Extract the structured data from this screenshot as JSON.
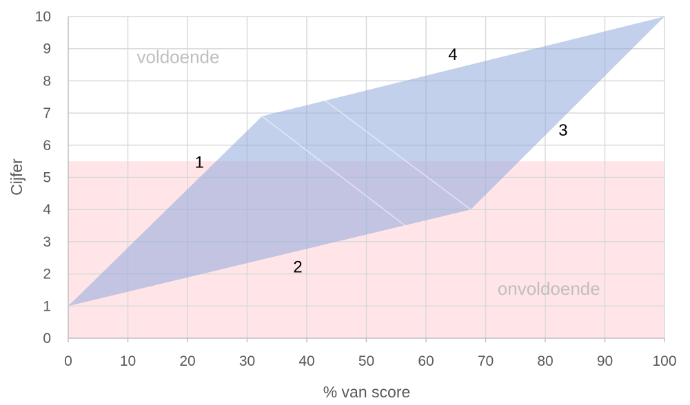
{
  "chart_data": {
    "type": "area",
    "xlabel": "% van score",
    "ylabel": "Cijfer",
    "xlim": [
      0,
      100
    ],
    "ylim": [
      0,
      10
    ],
    "x_ticks": [
      0,
      10,
      20,
      30,
      40,
      50,
      60,
      70,
      80,
      90,
      100
    ],
    "y_ticks": [
      0,
      1,
      2,
      3,
      4,
      5,
      6,
      7,
      8,
      9,
      10
    ],
    "grid": true,
    "band": {
      "name": "onvoldoende",
      "y_from": 0,
      "y_to": 5.5,
      "color": "#ffe5e8"
    },
    "region": {
      "color": "#8faadc",
      "opacity": 0.55,
      "points": [
        {
          "x": 0,
          "y": 1
        },
        {
          "x": 32.5,
          "y": 6.9
        },
        {
          "x": 100,
          "y": 10
        },
        {
          "x": 67.5,
          "y": 4.0
        }
      ]
    },
    "inner_lines": [
      [
        {
          "x": 32.5,
          "y": 6.9
        },
        {
          "x": 56.5,
          "y": 3.5
        }
      ],
      [
        {
          "x": 43,
          "y": 7.4
        },
        {
          "x": 67.5,
          "y": 4.0
        }
      ]
    ],
    "zone_labels": [
      {
        "text": "voldoende",
        "x": 11.5,
        "y": 8.55
      },
      {
        "text": "onvoldoende",
        "x": 72,
        "y": 1.35
      }
    ],
    "edge_labels": [
      {
        "text": "1",
        "x": 22,
        "y": 5.3
      },
      {
        "text": "2",
        "x": 38.5,
        "y": 2.05
      },
      {
        "text": "3",
        "x": 83,
        "y": 6.3
      },
      {
        "text": "4",
        "x": 64.5,
        "y": 8.65
      }
    ],
    "colors": {
      "grid": "#d9d9d9",
      "axis": "#bfbfbf"
    }
  }
}
